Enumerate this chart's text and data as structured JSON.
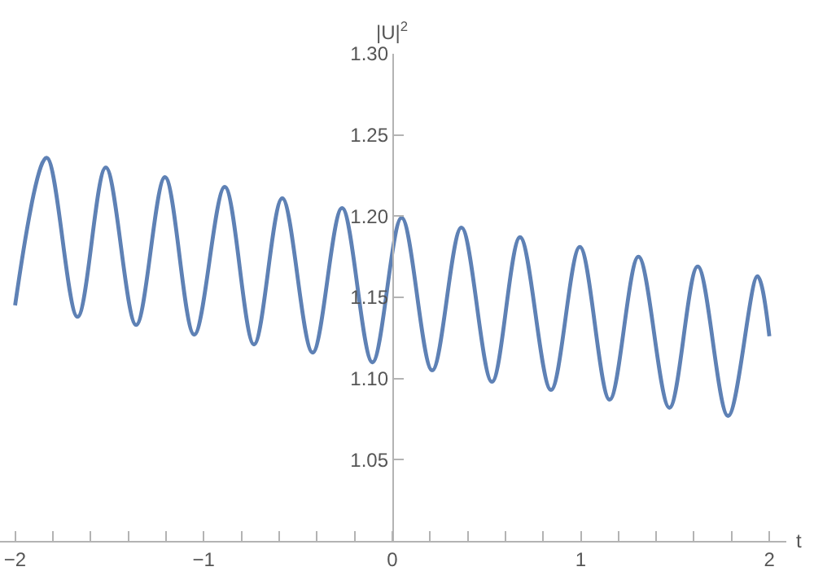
{
  "chart_data": {
    "type": "line",
    "xlabel": "t",
    "ylabel": "|U|$^{2}$",
    "x": [
      -2.0,
      -1.833,
      -1.669,
      -1.519,
      -1.358,
      -1.205,
      -1.05,
      -0.888,
      -0.733,
      -0.583,
      -0.422,
      -0.266,
      -0.105,
      0.05,
      0.212,
      0.367,
      0.529,
      0.678,
      0.842,
      0.995,
      1.153,
      1.306,
      1.47,
      1.62,
      1.781,
      1.937,
      2.0
    ],
    "series": [
      {
        "color": "#5e81b5",
        "values": [
          1.145,
          1.236,
          1.138,
          1.23,
          1.133,
          1.224,
          1.127,
          1.218,
          1.121,
          1.211,
          1.116,
          1.205,
          1.11,
          1.199,
          1.105,
          1.193,
          1.098,
          1.187,
          1.093,
          1.181,
          1.087,
          1.175,
          1.082,
          1.169,
          1.077,
          1.163,
          1.126
        ]
      }
    ],
    "xlim": [
      -2.08,
      2.09
    ],
    "xticks": [
      -2,
      {
        "value": -1.8,
        "label": null
      },
      {
        "value": -1.6,
        "label": null
      },
      {
        "value": -1.4,
        "label": null
      },
      {
        "value": -1.2,
        "label": null
      },
      {
        "value": -1,
        "label": "−1"
      },
      {
        "value": -0.8,
        "label": null
      },
      {
        "value": -0.6,
        "label": null
      },
      {
        "value": -0.4,
        "label": null
      },
      {
        "value": -0.2,
        "label": null
      },
      0,
      {
        "value": 0.2,
        "label": null
      },
      {
        "value": 0.4,
        "label": null
      },
      {
        "value": 0.6,
        "label": null
      },
      {
        "value": 0.8,
        "label": null
      },
      1,
      {
        "value": 1.2,
        "label": null
      },
      {
        "value": 1.4,
        "label": null
      },
      {
        "value": 1.6,
        "label": null
      },
      {
        "value": 1.8,
        "label": null
      },
      2
    ],
    "ylim": [
      1.0,
      1.3
    ],
    "yticks": [
      {
        "value": 1.05,
        "label": "1.05"
      },
      {
        "value": 1.1,
        "label": "1.10"
      },
      {
        "value": 1.15,
        "label": "1.15"
      },
      {
        "value": 1.2,
        "label": "1.20"
      },
      {
        "value": 1.25,
        "label": "1.25"
      },
      {
        "value": 1.3,
        "label": "1.30"
      }
    ],
    "marker": "none",
    "line_style": "solid"
  }
}
